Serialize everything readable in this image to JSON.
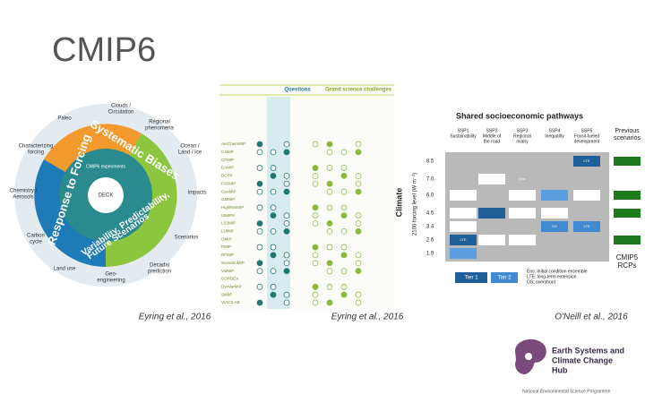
{
  "title": "CMIP6",
  "wheel": {
    "caption": "Eyring et al., 2016",
    "outer_labels": [
      [
        "Clouds /",
        "Circulation"
      ],
      [
        "Regional",
        "phenomena"
      ],
      [
        "Paleo"
      ],
      [
        "Ocean /",
        "Land / Ice"
      ],
      [
        "Characterizing",
        "forcing"
      ],
      [
        "Impacts"
      ],
      [
        "Chemistry /",
        "Aerosols"
      ],
      [
        "Carbon",
        "cycle"
      ],
      [
        "Scenarios"
      ],
      [
        "Land use"
      ],
      [
        "Geo-",
        "engineering"
      ],
      [
        "Decadal",
        "prediction"
      ]
    ],
    "ring_labels": [
      "Systematic Biases",
      "Response to Forcing",
      "Variability, Predictability,",
      "Future Scenarios"
    ],
    "centre": "DECK",
    "inner": "CMIP6 experiments"
  },
  "matrix": {
    "caption": "Eyring et al., 2016",
    "headers": [
      "Questions",
      "Grand science challenges"
    ],
    "rows": [
      "AerChemMIP",
      "C4MIP",
      "CFMIP",
      "DAMIP",
      "DCPP",
      "FAFMIP",
      "GeoMIP",
      "GMMIP",
      "HighResMIP",
      "ISMIP6",
      "LS3MIP",
      "LUMIP",
      "OMIP",
      "PMIP",
      "RFMIP",
      "ScenarioMIP",
      "VolMIP",
      "CORDEX",
      "DynVarMIP",
      "SIMIP",
      "VIACS AB"
    ]
  },
  "ssp": {
    "caption": "O'Neill et al., 2016",
    "title": "Shared socioeconomic pathways",
    "columns": [
      [
        "SSP1",
        "Sustainability"
      ],
      [
        "SSP2",
        "Middle of",
        "the road"
      ],
      [
        "SSP3",
        "Regional",
        "rivalry"
      ],
      [
        "SSP4",
        "Inequality"
      ],
      [
        "SSP5",
        "Fossil-fueled",
        "development"
      ]
    ],
    "previous": [
      "Previous",
      "scenarios"
    ],
    "axis_title": "Climate",
    "axis_label": "2100 forcing level (W m⁻²)",
    "levels": [
      "8.5",
      "7.0",
      "6.0",
      "4.5",
      "3.4",
      "2.6",
      "1.9"
    ],
    "cell_labels": [
      "LTE",
      "Ens",
      "OS",
      "LTE",
      "LTE"
    ],
    "tiers": [
      "Tier 1",
      "Tier 2"
    ],
    "notes": [
      "Ens: Initial condition ensemble",
      "LTE: long-term extension",
      "OS: overshoot"
    ],
    "rcp": [
      "CMIP5",
      "RCPs"
    ]
  },
  "logo": {
    "name": [
      "Earth Systems and",
      "Climate Change",
      "Hub"
    ],
    "program": "National Environmental Science Programme"
  }
}
